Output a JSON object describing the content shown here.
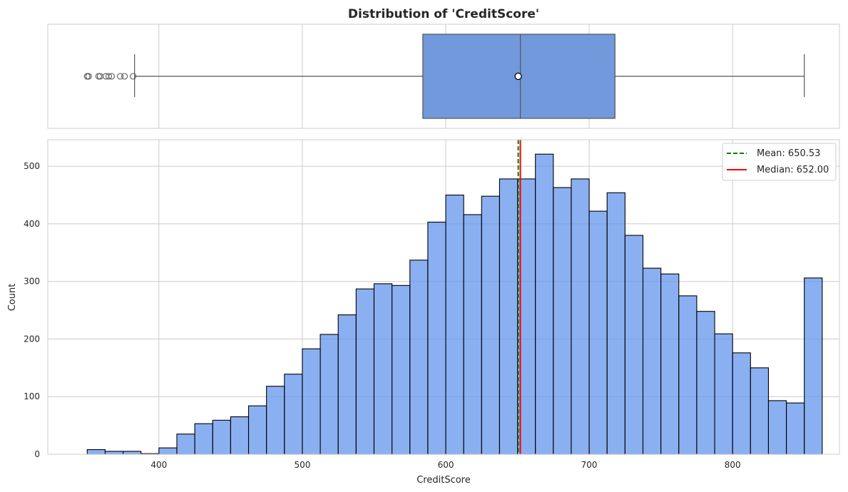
{
  "chart_data": {
    "type": "histogram+boxplot",
    "title": "Distribution of 'CreditScore'",
    "xlabel": "CreditScore",
    "ylabel": "Count",
    "xlim": [
      322.5,
      874.5
    ],
    "ylim": [
      0,
      546
    ],
    "xticks": [
      400,
      500,
      600,
      700,
      800
    ],
    "yticks": [
      0,
      100,
      200,
      300,
      400,
      500
    ],
    "grid": true,
    "colors": {
      "bar_fill": "#6495ED",
      "box_fill": "#7199DC",
      "mean_line": "#008000",
      "median_line": "#FF0000",
      "edge": "#000000",
      "whisker": "#555555",
      "grid": "#CCCCCC"
    },
    "histogram": {
      "bin_start": 350,
      "bin_width": 12.5,
      "counts": [
        8,
        5,
        5,
        1,
        11,
        35,
        53,
        59,
        65,
        84,
        118,
        139,
        183,
        208,
        242,
        287,
        296,
        293,
        337,
        403,
        450,
        416,
        448,
        478,
        478,
        521,
        463,
        478,
        422,
        454,
        380,
        323,
        313,
        275,
        248,
        209,
        176,
        150,
        93,
        89,
        306
      ]
    },
    "boxplot": {
      "q1": 584,
      "median": 652,
      "q3": 718,
      "mean": 650.53,
      "whisker_low": 383,
      "whisker_high": 850,
      "outliers": [
        350,
        350,
        351,
        358,
        359,
        363,
        365,
        367,
        373,
        376,
        382
      ]
    },
    "legend": {
      "position": "upper right",
      "entries": [
        {
          "label": "Mean: 650.53",
          "value": 650.53,
          "style": "dashed",
          "color": "#008000"
        },
        {
          "label": "Median: 652.00",
          "value": 652.0,
          "style": "solid",
          "color": "#FF0000"
        }
      ]
    }
  }
}
